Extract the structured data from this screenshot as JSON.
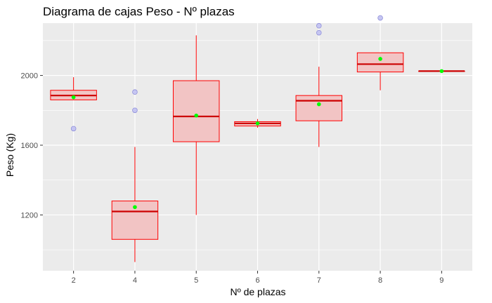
{
  "chart_data": {
    "type": "boxplot",
    "title": "Diagrama de cajas Peso - Nº plazas",
    "xlabel": "Nº de plazas",
    "ylabel": "Peso (Kg)",
    "categories": [
      "2",
      "4",
      "5",
      "6",
      "7",
      "8",
      "9"
    ],
    "ylim": [
      880,
      2300
    ],
    "yticks": [
      1200,
      1600,
      2000
    ],
    "grid": true,
    "boxes": [
      {
        "category": "2",
        "whisker_low": 1860,
        "q1": 1860,
        "median": 1885,
        "q3": 1915,
        "whisker_high": 1990,
        "mean": 1875,
        "outliers": [
          1695
        ]
      },
      {
        "category": "4",
        "whisker_low": 930,
        "q1": 1060,
        "median": 1220,
        "q3": 1280,
        "whisker_high": 1590,
        "mean": 1245,
        "outliers": [
          1800,
          1905
        ]
      },
      {
        "category": "5",
        "whisker_low": 1200,
        "q1": 1620,
        "median": 1765,
        "q3": 1970,
        "whisker_high": 2230,
        "mean": 1770,
        "outliers": []
      },
      {
        "category": "6",
        "whisker_low": 1700,
        "q1": 1710,
        "median": 1725,
        "q3": 1735,
        "whisker_high": 1750,
        "mean": 1725,
        "outliers": []
      },
      {
        "category": "7",
        "whisker_low": 1590,
        "q1": 1740,
        "median": 1855,
        "q3": 1885,
        "whisker_high": 2050,
        "mean": 1835,
        "outliers": [
          2245,
          2285
        ]
      },
      {
        "category": "8",
        "whisker_low": 1915,
        "q1": 2020,
        "median": 2065,
        "q3": 2130,
        "whisker_high": 2130,
        "mean": 2095,
        "outliers": [
          2330
        ]
      },
      {
        "category": "9",
        "whisker_low": 2025,
        "q1": 2025,
        "median": 2025,
        "q3": 2025,
        "whisker_high": 2025,
        "mean": 2025,
        "outliers": []
      }
    ],
    "colors": {
      "panel": "#ebebeb",
      "grid": "#ffffff",
      "box_fill": "#f2c4c4",
      "box_line": "#ff0000",
      "median": "#cc0000",
      "mean": "#00ff00",
      "outlier_fill": "#c6c6f2",
      "outlier_line": "#8f8fd9"
    }
  }
}
